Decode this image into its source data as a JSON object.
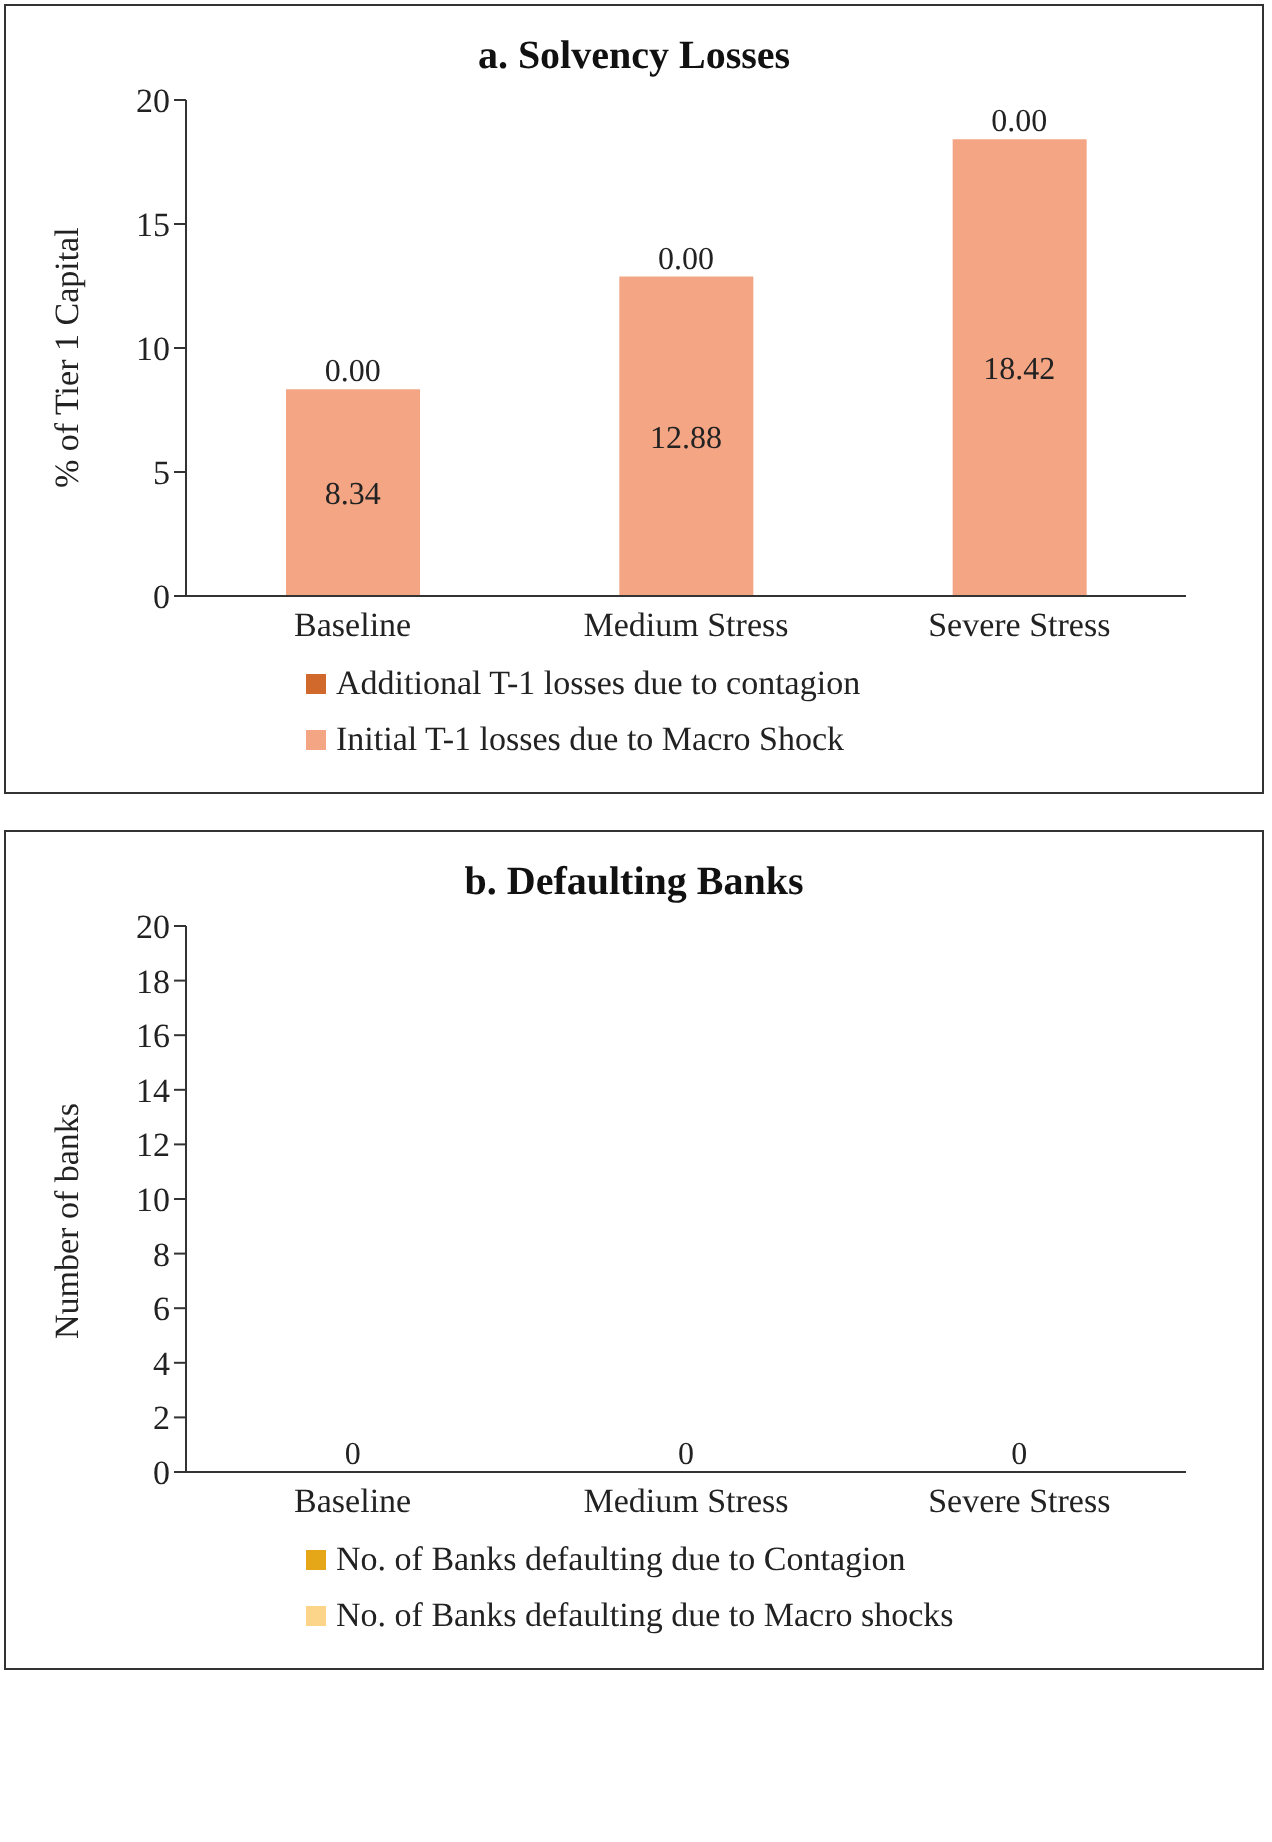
{
  "chart_data": [
    {
      "type": "bar",
      "title": "a. Solvency Losses",
      "ylabel": "% of Tier 1 Capital",
      "categories": [
        "Baseline",
        "Medium Stress",
        "Severe Stress"
      ],
      "stacked": true,
      "series": [
        {
          "name": "Initial T-1 losses due to Macro Shock",
          "color": "#f3a584",
          "values": [
            8.34,
            12.88,
            18.42
          ],
          "value_labels": [
            "8.34",
            "12.88",
            "18.42"
          ]
        },
        {
          "name": "Additional T-1 losses due to contagion",
          "color": "#d2692c",
          "values": [
            0,
            0,
            0
          ],
          "value_labels": [
            "0.00",
            "0.00",
            "0.00"
          ]
        }
      ],
      "ylim": [
        0,
        20
      ],
      "yticks": [
        0,
        5,
        10,
        15,
        20
      ],
      "grid": false,
      "legend": "bottom"
    },
    {
      "type": "bar",
      "title": "b. Defaulting Banks",
      "ylabel": "Number of banks",
      "categories": [
        "Baseline",
        "Medium Stress",
        "Severe Stress"
      ],
      "stacked": true,
      "series": [
        {
          "name": "No. of Banks defaulting due to Macro shocks",
          "color": "#fdd58a",
          "values": [
            0,
            0,
            0
          ],
          "value_labels": [
            "0",
            "0",
            "0"
          ]
        },
        {
          "name": "No. of Banks defaulting due to Contagion",
          "color": "#e5a617",
          "values": [
            0,
            0,
            0
          ]
        }
      ],
      "ylim": [
        0,
        20
      ],
      "yticks": [
        0,
        2,
        4,
        6,
        8,
        10,
        12,
        14,
        16,
        18,
        20
      ],
      "grid": false,
      "legend": "bottom"
    }
  ]
}
